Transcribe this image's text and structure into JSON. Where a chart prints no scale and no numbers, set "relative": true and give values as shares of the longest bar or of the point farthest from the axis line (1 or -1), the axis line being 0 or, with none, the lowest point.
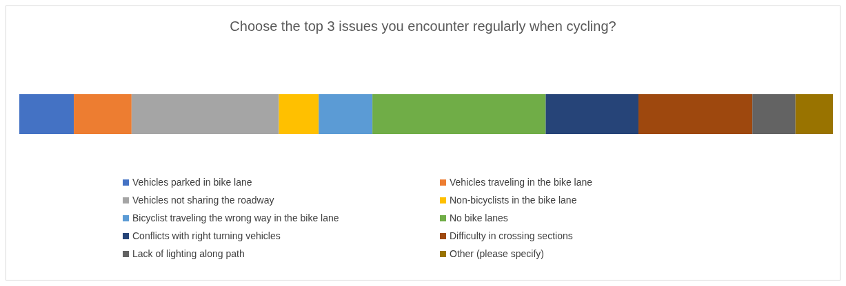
{
  "chart_data": {
    "type": "bar",
    "title": "Choose the top 3 issues you encounter regularly when cycling?",
    "orientation": "horizontal",
    "stacked": true,
    "relative": true,
    "categories": [
      null
    ],
    "legend": "bottom",
    "series": [
      {
        "name": "Vehicles parked in bike lane",
        "color": "#4472c4",
        "values": [
          0.067
        ]
      },
      {
        "name": "Vehicles traveling in the bike lane",
        "color": "#ed7d31",
        "values": [
          0.071
        ]
      },
      {
        "name": "Vehicles not sharing the roadway",
        "color": "#a5a5a5",
        "values": [
          0.181
        ]
      },
      {
        "name": "Non-bicyclists in the bike lane",
        "color": "#ffc000",
        "values": [
          0.049
        ]
      },
      {
        "name": "Bicyclist traveling the wrong way in the bike lane",
        "color": "#5b9bd5",
        "values": [
          0.066
        ]
      },
      {
        "name": "No bike lanes",
        "color": "#70ad47",
        "values": [
          0.213
        ]
      },
      {
        "name": "Conflicts with right turning vehicles",
        "color": "#264478",
        "values": [
          0.114
        ]
      },
      {
        "name": "Difficulty in crossing sections",
        "color": "#9e480e",
        "values": [
          0.14
        ]
      },
      {
        "name": "Lack of lighting along path",
        "color": "#636363",
        "values": [
          0.053
        ]
      },
      {
        "name": "Other (please specify)",
        "color": "#997300",
        "values": [
          0.046
        ]
      }
    ]
  }
}
